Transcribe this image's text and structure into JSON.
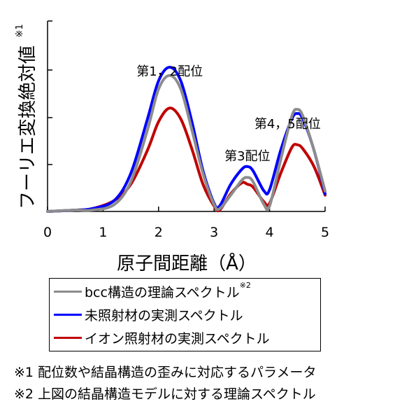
{
  "chart_data": {
    "type": "line",
    "xlabel": "原子間距離（Å）",
    "ylabel": "フーリエ変換絶対値",
    "ylabel_note": "※1",
    "xlim": [
      0,
      5
    ],
    "ylim": [
      0,
      1.4
    ],
    "x_ticks": [
      "0",
      "1",
      "2",
      "3",
      "4",
      "5"
    ],
    "grid": false,
    "series": [
      {
        "name": "bcc構造の理論スペクトル",
        "name_note": "※2",
        "color": "#8c8c8c",
        "x": [
          0,
          0.5,
          0.8,
          1.2,
          1.5,
          1.8,
          2.0,
          2.2,
          2.4,
          2.6,
          2.8,
          3.0,
          3.1,
          3.3,
          3.5,
          3.6,
          3.7,
          3.9,
          4.0,
          4.2,
          4.4,
          4.5,
          4.6,
          4.8,
          5.0
        ],
        "y": [
          0.0,
          0.01,
          0.01,
          0.05,
          0.22,
          0.6,
          0.9,
          1.0,
          0.9,
          0.6,
          0.28,
          0.05,
          0.02,
          0.12,
          0.23,
          0.25,
          0.22,
          0.05,
          0.04,
          0.38,
          0.7,
          0.75,
          0.7,
          0.45,
          0.15
        ]
      },
      {
        "name": "未照射材の実測スペクトル",
        "color": "#0000ff",
        "x": [
          0,
          0.5,
          0.8,
          1.2,
          1.5,
          1.8,
          2.0,
          2.2,
          2.4,
          2.6,
          2.8,
          3.0,
          3.1,
          3.3,
          3.5,
          3.6,
          3.7,
          3.9,
          4.0,
          4.2,
          4.4,
          4.5,
          4.6,
          4.8,
          5.0
        ],
        "y": [
          0.0,
          0.01,
          0.02,
          0.08,
          0.28,
          0.68,
          0.96,
          1.06,
          0.96,
          0.66,
          0.3,
          0.06,
          0.04,
          0.2,
          0.31,
          0.33,
          0.3,
          0.15,
          0.16,
          0.45,
          0.68,
          0.72,
          0.68,
          0.45,
          0.13
        ]
      },
      {
        "name": "イオン照射材の実測スペクトル",
        "color": "#c00000",
        "x": [
          0,
          0.5,
          0.8,
          1.2,
          1.5,
          1.8,
          2.0,
          2.2,
          2.4,
          2.6,
          2.8,
          3.0,
          3.1,
          3.3,
          3.5,
          3.6,
          3.7,
          3.9,
          4.0,
          4.2,
          4.4,
          4.5,
          4.6,
          4.8,
          5.0
        ],
        "y": [
          0.0,
          0.01,
          0.02,
          0.08,
          0.2,
          0.45,
          0.66,
          0.76,
          0.68,
          0.46,
          0.2,
          0.04,
          0.01,
          0.13,
          0.21,
          0.2,
          0.18,
          0.07,
          0.06,
          0.28,
          0.47,
          0.49,
          0.46,
          0.33,
          0.12
        ]
      }
    ],
    "annotations": [
      {
        "text": "第1，2配位",
        "x": 2.2
      },
      {
        "text": "第3配位",
        "x": 3.6
      },
      {
        "text": "第4，5配位",
        "x": 4.5
      }
    ],
    "legend_position": "bottom"
  },
  "footnotes": [
    "※1 配位数や結晶構造の歪みに対応するパラメータ",
    "※2 上図の結晶構造モデルに対する理論スペクトル"
  ]
}
